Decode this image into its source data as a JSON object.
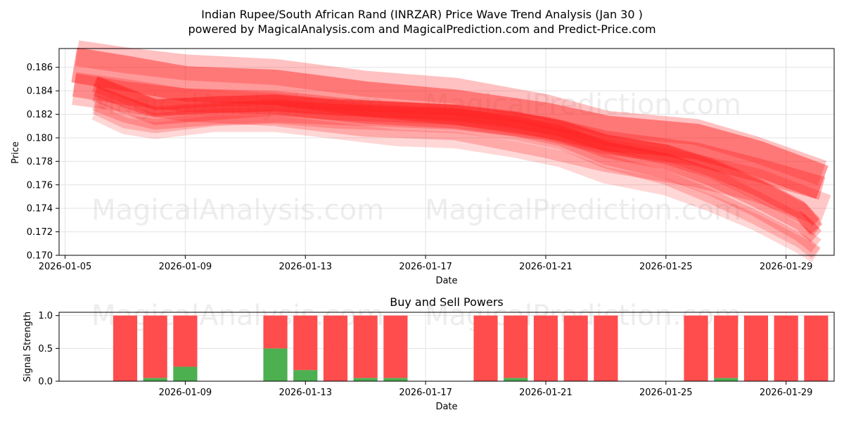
{
  "chart_data": [
    {
      "type": "area",
      "title_line1": "Indian Rupee/South African Rand (INRZAR) Price Wave Trend Analysis (Jan 30 )",
      "title_line2": "powered by MagicalAnalysis.com and MagicalPrediction.com and Predict-Price.com",
      "xlabel": "Date",
      "ylabel": "Price",
      "xlim_days": [
        4.8,
        30.6
      ],
      "ylim": [
        0.17,
        0.1876
      ],
      "x_tick_days": [
        5,
        9,
        13,
        17,
        21,
        25,
        29
      ],
      "x_tick_labels": [
        "2026-01-05",
        "2026-01-09",
        "2026-01-13",
        "2026-01-17",
        "2026-01-21",
        "2026-01-25",
        "2026-01-29"
      ],
      "y_ticks": [
        0.17,
        0.172,
        0.174,
        0.176,
        0.178,
        0.18,
        0.182,
        0.184,
        0.186
      ],
      "y_tick_labels": [
        "0.170",
        "0.172",
        "0.174",
        "0.176",
        "0.178",
        "0.180",
        "0.182",
        "0.184",
        "0.186"
      ],
      "color": "#ff2020",
      "watermarks": [
        "MagicalAnalysis.com",
        "MagicalPrediction.com"
      ],
      "bands": [
        {
          "name": "band-upper-wide",
          "opacity": 0.28,
          "width": 0.0022,
          "points": [
            [
              5.4,
              0.1872
            ],
            [
              7,
              0.1866
            ],
            [
              9,
              0.186
            ],
            [
              12,
              0.1856
            ],
            [
              15,
              0.1846
            ],
            [
              18,
              0.184
            ],
            [
              21,
              0.1826
            ],
            [
              23,
              0.1812
            ],
            [
              26,
              0.1805
            ],
            [
              28,
              0.179
            ],
            [
              30.2,
              0.177
            ]
          ]
        },
        {
          "name": "band-upper-main",
          "opacity": 0.45,
          "width": 0.003,
          "points": [
            [
              5.3,
              0.1862
            ],
            [
              7,
              0.1855
            ],
            [
              9,
              0.1846
            ],
            [
              12,
              0.1843
            ],
            [
              15,
              0.1833
            ],
            [
              18,
              0.1826
            ],
            [
              21,
              0.1815
            ],
            [
              23,
              0.1804
            ],
            [
              26,
              0.1797
            ],
            [
              28,
              0.1783
            ],
            [
              30.2,
              0.1762
            ]
          ]
        },
        {
          "name": "band-upper-lower",
          "opacity": 0.35,
          "width": 0.002,
          "points": [
            [
              5.3,
              0.1845
            ],
            [
              7,
              0.1838
            ],
            [
              9,
              0.1832
            ],
            [
              12,
              0.183
            ],
            [
              15,
              0.1822
            ],
            [
              18,
              0.1818
            ],
            [
              21,
              0.1808
            ],
            [
              23,
              0.1796
            ],
            [
              26,
              0.1786
            ],
            [
              28,
              0.1773
            ],
            [
              30.2,
              0.1757
            ]
          ]
        },
        {
          "name": "band-lower-wide",
          "opacity": 0.25,
          "width": 0.0028,
          "points": [
            [
              5.3,
              0.1842
            ],
            [
              7,
              0.1836
            ],
            [
              9,
              0.1828
            ],
            [
              12,
              0.1824
            ],
            [
              15,
              0.1815
            ],
            [
              18,
              0.1812
            ],
            [
              21,
              0.1797
            ],
            [
              23,
              0.1785
            ],
            [
              26,
              0.1772
            ],
            [
              28,
              0.176
            ],
            [
              30.3,
              0.1738
            ]
          ]
        },
        {
          "name": "band-mid-1",
          "opacity": 0.35,
          "width": 0.0014,
          "points": [
            [
              6,
              0.1846
            ],
            [
              7,
              0.1836
            ],
            [
              8,
              0.1826
            ],
            [
              10,
              0.1828
            ],
            [
              12,
              0.183
            ],
            [
              14,
              0.1826
            ],
            [
              16,
              0.1824
            ],
            [
              18,
              0.1821
            ],
            [
              20,
              0.1815
            ],
            [
              21.5,
              0.1808
            ],
            [
              23,
              0.1796
            ],
            [
              25,
              0.1787
            ],
            [
              26.5,
              0.1774
            ],
            [
              28,
              0.1758
            ],
            [
              29.5,
              0.1738
            ],
            [
              30,
              0.1722
            ]
          ]
        },
        {
          "name": "band-mid-2",
          "opacity": 0.3,
          "width": 0.0014,
          "points": [
            [
              6,
              0.1838
            ],
            [
              7,
              0.1828
            ],
            [
              8,
              0.1818
            ],
            [
              10,
              0.1822
            ],
            [
              12,
              0.1826
            ],
            [
              14,
              0.1822
            ],
            [
              16,
              0.182
            ],
            [
              18,
              0.1818
            ],
            [
              20,
              0.1812
            ],
            [
              21.5,
              0.1804
            ],
            [
              23,
              0.179
            ],
            [
              25,
              0.178
            ],
            [
              26.5,
              0.1766
            ],
            [
              28,
              0.1748
            ],
            [
              29.5,
              0.1728
            ],
            [
              30,
              0.1716
            ]
          ]
        },
        {
          "name": "band-mid-3",
          "opacity": 0.25,
          "width": 0.0014,
          "points": [
            [
              6,
              0.183
            ],
            [
              7,
              0.182
            ],
            [
              8,
              0.1814
            ],
            [
              10,
              0.1818
            ],
            [
              12,
              0.182
            ],
            [
              14,
              0.1818
            ],
            [
              16,
              0.1816
            ],
            [
              18,
              0.1814
            ],
            [
              20,
              0.1808
            ],
            [
              21.5,
              0.18
            ],
            [
              23,
              0.1784
            ],
            [
              25,
              0.1772
            ],
            [
              26.5,
              0.1758
            ],
            [
              28,
              0.174
            ],
            [
              29.5,
              0.1718
            ],
            [
              30,
              0.1708
            ]
          ]
        },
        {
          "name": "band-mid-4",
          "opacity": 0.22,
          "width": 0.0012,
          "points": [
            [
              6,
              0.1826
            ],
            [
              7,
              0.1814
            ],
            [
              8,
              0.181
            ],
            [
              10,
              0.1816
            ],
            [
              12,
              0.1818
            ],
            [
              14,
              0.1814
            ],
            [
              16,
              0.1812
            ],
            [
              18,
              0.181
            ],
            [
              20,
              0.1804
            ],
            [
              21.5,
              0.1796
            ],
            [
              23,
              0.178
            ],
            [
              25,
              0.1766
            ],
            [
              26.5,
              0.175
            ],
            [
              28,
              0.1732
            ],
            [
              29.5,
              0.1712
            ],
            [
              30,
              0.1702
            ]
          ]
        },
        {
          "name": "band-core-1",
          "opacity": 0.4,
          "width": 0.0009,
          "points": [
            [
              6,
              0.1848
            ],
            [
              7,
              0.1838
            ],
            [
              8,
              0.1828
            ],
            [
              10,
              0.1831
            ],
            [
              12,
              0.1832
            ],
            [
              14,
              0.1828
            ],
            [
              16,
              0.1826
            ],
            [
              18,
              0.1824
            ],
            [
              20,
              0.1818
            ],
            [
              21.5,
              0.181
            ],
            [
              23,
              0.1798
            ],
            [
              25,
              0.179
            ],
            [
              26.5,
              0.1778
            ],
            [
              28,
              0.1762
            ],
            [
              29.5,
              0.1742
            ],
            [
              30,
              0.1728
            ]
          ]
        },
        {
          "name": "band-core-2",
          "opacity": 0.35,
          "width": 0.0009,
          "points": [
            [
              6,
              0.184
            ],
            [
              7,
              0.183
            ],
            [
              8,
              0.1822
            ],
            [
              10,
              0.1826
            ],
            [
              12,
              0.1827
            ],
            [
              14,
              0.1824
            ],
            [
              16,
              0.1822
            ],
            [
              18,
              0.182
            ],
            [
              20,
              0.1814
            ],
            [
              21.5,
              0.1806
            ],
            [
              23,
              0.1792
            ],
            [
              25,
              0.1782
            ],
            [
              26.5,
              0.177
            ],
            [
              28,
              0.1752
            ],
            [
              29.5,
              0.1732
            ],
            [
              30,
              0.172
            ]
          ]
        },
        {
          "name": "band-lowest",
          "opacity": 0.18,
          "width": 0.0014,
          "points": [
            [
              6,
              0.1822
            ],
            [
              7,
              0.181
            ],
            [
              8,
              0.1806
            ],
            [
              10,
              0.1812
            ],
            [
              12,
              0.1812
            ],
            [
              14,
              0.1806
            ],
            [
              16,
              0.18
            ],
            [
              18,
              0.1798
            ],
            [
              20,
              0.179
            ],
            [
              21.5,
              0.1782
            ],
            [
              23,
              0.1768
            ],
            [
              25,
              0.1758
            ],
            [
              26.5,
              0.1744
            ],
            [
              28,
              0.1728
            ],
            [
              29.5,
              0.1708
            ],
            [
              30,
              0.17
            ]
          ]
        }
      ]
    },
    {
      "type": "bar",
      "title": "Buy and Sell Powers",
      "xlabel": "Date",
      "ylabel": "Signal Strength",
      "xlim_days": [
        4.8,
        30.6
      ],
      "ylim": [
        0,
        1.05
      ],
      "x_tick_days": [
        9,
        13,
        17,
        21,
        25,
        29
      ],
      "x_tick_labels": [
        "2026-01-09",
        "2026-01-13",
        "2026-01-17",
        "2026-01-21",
        "2026-01-25",
        "2026-01-29"
      ],
      "y_ticks": [
        0,
        0.5,
        1
      ],
      "y_tick_labels": [
        "0.0",
        "0.5",
        "1.0"
      ],
      "buy_color": "#4caf50",
      "sell_color": "#ff4d4d",
      "watermarks": [
        "MagicalAnalysis.com",
        "MagicalPrediction.com"
      ],
      "series": [
        {
          "name": "Buy",
          "days": [
            7,
            8,
            9,
            10,
            11,
            12,
            13,
            14,
            15,
            16,
            17,
            18,
            19,
            20,
            21,
            22,
            23,
            24,
            25,
            26,
            27,
            28,
            29,
            30
          ],
          "values": [
            0,
            0.05,
            0.22,
            null,
            null,
            0.5,
            0.17,
            0,
            0.05,
            0.05,
            null,
            null,
            0,
            0.05,
            0,
            0,
            0,
            null,
            null,
            0,
            0.05,
            0,
            0,
            0
          ]
        },
        {
          "name": "Sell",
          "days": [
            7,
            8,
            9,
            10,
            11,
            12,
            13,
            14,
            15,
            16,
            17,
            18,
            19,
            20,
            21,
            22,
            23,
            24,
            25,
            26,
            27,
            28,
            29,
            30
          ],
          "values": [
            1,
            0.95,
            0.78,
            null,
            null,
            0.5,
            0.83,
            1,
            0.95,
            0.95,
            null,
            null,
            1,
            0.95,
            1,
            1,
            1,
            null,
            null,
            1,
            0.95,
            1,
            1,
            1
          ]
        }
      ]
    }
  ]
}
